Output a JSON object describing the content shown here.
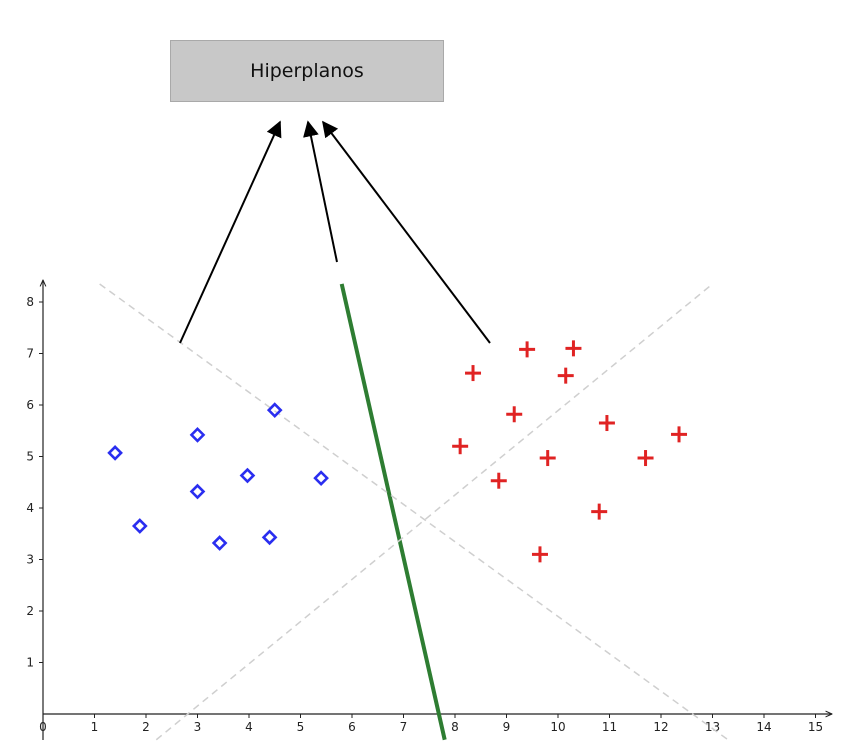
{
  "title_box": {
    "text": "Hiperplanos"
  },
  "colors": {
    "class_a": "#2a2ef0",
    "class_b": "#e02323",
    "separator": "#2e7d32",
    "margins": "#cfcfcf",
    "arrows": "#000000"
  },
  "chart_data": {
    "type": "scatter",
    "title": "",
    "xlabel": "",
    "ylabel": "",
    "xlim": [
      0,
      15.2
    ],
    "ylim": [
      0,
      8.8
    ],
    "x_ticks": [
      0,
      1,
      2,
      3,
      4,
      5,
      6,
      7,
      8,
      9,
      10,
      11,
      12,
      13,
      14,
      15
    ],
    "y_ticks": [
      1,
      2,
      3,
      4,
      5,
      6,
      7,
      8
    ],
    "grid": false,
    "series": [
      {
        "marker": "diamond-open",
        "color": "#2a2ef0",
        "points": [
          [
            1.4,
            5.07
          ],
          [
            1.88,
            3.65
          ],
          [
            3.0,
            5.42
          ],
          [
            3.0,
            4.32
          ],
          [
            3.43,
            3.32
          ],
          [
            3.97,
            4.63
          ],
          [
            4.4,
            3.43
          ],
          [
            4.5,
            5.9
          ],
          [
            5.4,
            4.58
          ]
        ]
      },
      {
        "marker": "plus",
        "color": "#e02323",
        "points": [
          [
            8.1,
            5.2
          ],
          [
            8.35,
            6.62
          ],
          [
            8.85,
            4.53
          ],
          [
            9.15,
            5.82
          ],
          [
            9.4,
            7.08
          ],
          [
            9.65,
            3.1
          ],
          [
            9.8,
            4.97
          ],
          [
            10.15,
            6.57
          ],
          [
            10.3,
            7.1
          ],
          [
            10.8,
            3.93
          ],
          [
            10.95,
            5.65
          ],
          [
            11.7,
            4.97
          ],
          [
            12.35,
            5.43
          ]
        ]
      }
    ],
    "lines": [
      {
        "role": "separating-hyperplane",
        "style": "solid",
        "from": [
          5.8,
          8.35
        ],
        "to": [
          7.8,
          -0.5
        ]
      },
      {
        "role": "margin",
        "style": "dashed",
        "from": [
          1.1,
          8.35
        ],
        "to": [
          13.3,
          -0.5
        ]
      },
      {
        "role": "margin",
        "style": "dashed",
        "from": [
          2.2,
          -0.5
        ],
        "to": [
          13.0,
          8.35
        ]
      }
    ]
  }
}
